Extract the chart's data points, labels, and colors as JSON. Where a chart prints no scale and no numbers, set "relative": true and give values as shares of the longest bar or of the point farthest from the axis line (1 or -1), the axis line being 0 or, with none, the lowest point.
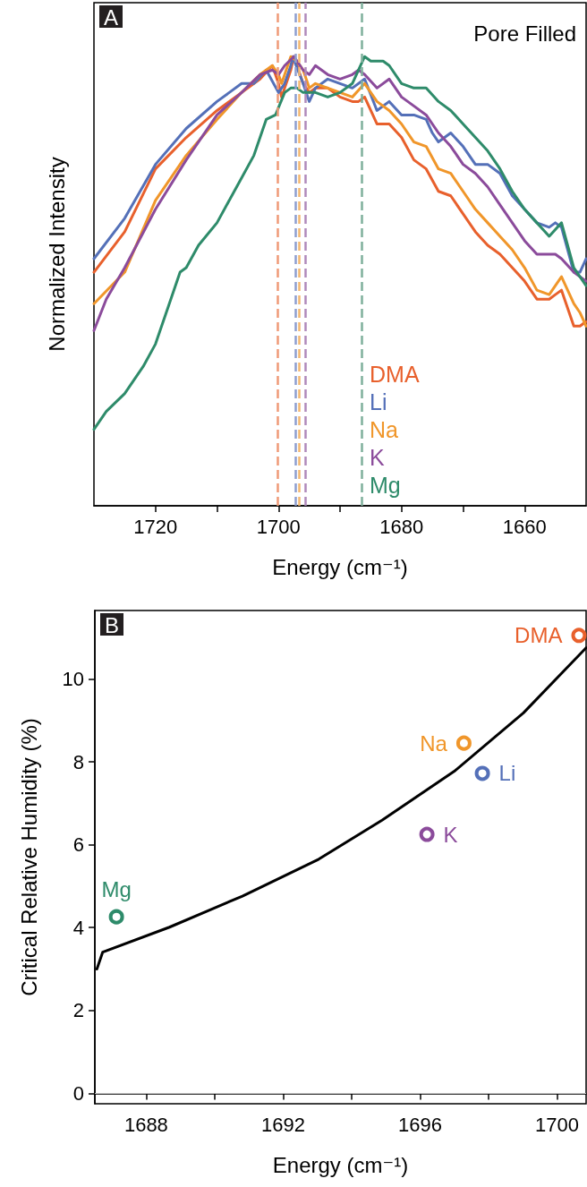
{
  "chart_data": [
    {
      "type": "line",
      "relative": true,
      "xlabel": "Energy (cm⁻¹)",
      "ylabel": "Normalized Intensity",
      "annotations": [
        "A",
        "Pore Filled"
      ],
      "xlim": [
        1730,
        1650
      ],
      "xticks": [
        1720,
        {
          "value": 1710,
          "label": null
        },
        1700,
        {
          "value": 1690,
          "label": null
        },
        1680,
        {
          "value": 1670,
          "label": null
        },
        1660
      ],
      "tick_labels": "x",
      "grid": false,
      "legend": "bottom",
      "series": [
        {
          "name": "DMA",
          "color": "#e8602c",
          "x": [
            1730,
            1725,
            1720,
            1715,
            1710,
            1706,
            1703,
            1701,
            1700,
            1699.5,
            1698,
            1697.5,
            1696,
            1695,
            1694,
            1692,
            1690,
            1688,
            1687,
            1686,
            1684,
            1682,
            1680,
            1678,
            1676,
            1674,
            1672,
            1670,
            1668,
            1666,
            1664,
            1662,
            1660,
            1658,
            1656,
            1655,
            1654,
            1652,
            1651,
            1650
          ],
          "values": [
            0.52,
            0.61,
            0.75,
            0.82,
            0.88,
            0.92,
            0.95,
            0.98,
            0.94,
            0.91,
            0.97,
            1.0,
            0.94,
            0.92,
            0.93,
            0.93,
            0.91,
            0.9,
            0.9,
            0.91,
            0.85,
            0.85,
            0.82,
            0.77,
            0.75,
            0.7,
            0.69,
            0.65,
            0.61,
            0.58,
            0.56,
            0.53,
            0.5,
            0.46,
            0.46,
            0.47,
            0.48,
            0.4,
            0.4,
            0.41
          ]
        },
        {
          "name": "Li",
          "color": "#5470b8",
          "x": [
            1730,
            1725,
            1720,
            1715,
            1710,
            1706,
            1704,
            1702,
            1700,
            1699,
            1698,
            1697.7,
            1696,
            1695,
            1694,
            1692,
            1690,
            1688,
            1686,
            1684,
            1682,
            1680,
            1678,
            1676,
            1675,
            1674,
            1672,
            1670,
            1668,
            1666,
            1664,
            1662,
            1660,
            1658,
            1656,
            1655,
            1654,
            1652,
            1651,
            1650
          ],
          "values": [
            0.55,
            0.64,
            0.76,
            0.84,
            0.9,
            0.94,
            0.94,
            0.97,
            0.92,
            0.94,
            0.98,
            1.0,
            0.94,
            0.9,
            0.93,
            0.95,
            0.94,
            0.93,
            0.95,
            0.88,
            0.9,
            0.87,
            0.87,
            0.86,
            0.83,
            0.81,
            0.83,
            0.8,
            0.76,
            0.76,
            0.74,
            0.69,
            0.66,
            0.63,
            0.62,
            0.63,
            0.62,
            0.52,
            0.52,
            0.55
          ]
        },
        {
          "name": "Na",
          "color": "#f0962a",
          "x": [
            1730,
            1725,
            1720,
            1715,
            1710,
            1706,
            1703,
            1701,
            1700,
            1699.5,
            1698,
            1697,
            1696,
            1695,
            1694,
            1692,
            1690,
            1688,
            1686,
            1684,
            1682,
            1680,
            1678,
            1676,
            1674,
            1672,
            1670,
            1668,
            1666,
            1664,
            1662,
            1660,
            1658,
            1656,
            1655,
            1654,
            1652,
            1651,
            1650
          ],
          "values": [
            0.45,
            0.52,
            0.68,
            0.78,
            0.86,
            0.92,
            0.96,
            0.98,
            0.96,
            0.94,
            1.0,
            0.99,
            0.97,
            0.93,
            0.94,
            0.93,
            0.92,
            0.91,
            0.94,
            0.9,
            0.88,
            0.85,
            0.81,
            0.8,
            0.75,
            0.74,
            0.7,
            0.66,
            0.63,
            0.6,
            0.57,
            0.53,
            0.48,
            0.47,
            0.49,
            0.51,
            0.45,
            0.43,
            0.4
          ]
        },
        {
          "name": "K",
          "color": "#8b4b9b",
          "x": [
            1730,
            1728,
            1725,
            1720,
            1715,
            1710,
            1706,
            1703,
            1701,
            1700,
            1699,
            1697.5,
            1696,
            1695,
            1694,
            1692,
            1690,
            1688,
            1687,
            1686,
            1684,
            1682,
            1680,
            1678,
            1676,
            1674,
            1672,
            1670,
            1668,
            1666,
            1664,
            1662,
            1660,
            1658,
            1656,
            1655,
            1654,
            1652,
            1650
          ],
          "values": [
            0.39,
            0.46,
            0.53,
            0.66,
            0.77,
            0.87,
            0.92,
            0.96,
            0.97,
            0.96,
            0.98,
            1.0,
            0.97,
            0.96,
            0.98,
            0.96,
            0.95,
            0.96,
            0.97,
            0.96,
            0.93,
            0.95,
            0.91,
            0.89,
            0.87,
            0.83,
            0.8,
            0.76,
            0.74,
            0.71,
            0.67,
            0.63,
            0.59,
            0.56,
            0.56,
            0.56,
            0.55,
            0.52,
            0.5
          ]
        },
        {
          "name": "Mg",
          "color": "#2e8b6a",
          "x": [
            1730,
            1728,
            1725,
            1722,
            1720,
            1718,
            1716,
            1715,
            1713,
            1710,
            1706,
            1704,
            1702,
            1700.5,
            1699,
            1698,
            1697,
            1696,
            1695,
            1694,
            1692,
            1690,
            1688,
            1686,
            1685,
            1684,
            1683,
            1682,
            1680,
            1678,
            1676,
            1674,
            1672,
            1670,
            1668,
            1666,
            1664,
            1662,
            1660,
            1658,
            1656,
            1654,
            1652,
            1650
          ],
          "values": [
            0.17,
            0.21,
            0.25,
            0.31,
            0.36,
            0.44,
            0.52,
            0.53,
            0.58,
            0.63,
            0.73,
            0.78,
            0.86,
            0.87,
            0.92,
            0.93,
            0.93,
            0.92,
            0.92,
            0.92,
            0.91,
            0.92,
            0.94,
            1.0,
            0.99,
            0.99,
            0.99,
            0.98,
            0.94,
            0.93,
            0.93,
            0.9,
            0.88,
            0.85,
            0.82,
            0.79,
            0.75,
            0.7,
            0.66,
            0.63,
            0.6,
            0.63,
            0.53,
            0.49
          ]
        }
      ],
      "ref_lines": [
        {
          "axis": "x",
          "value": 1700.1,
          "color": "#ef9a78",
          "line_style": "dashed"
        },
        {
          "axis": "x",
          "value": 1697.3,
          "color": "#8f9fd0",
          "line_style": "dashed"
        },
        {
          "axis": "x",
          "value": 1696.7,
          "color": "#f4b870",
          "line_style": "dashed"
        },
        {
          "axis": "x",
          "value": 1695.6,
          "color": "#b08abb",
          "line_style": "dashed"
        },
        {
          "axis": "x",
          "value": 1686.5,
          "color": "#7fb09c",
          "line_style": "dashed"
        }
      ]
    },
    {
      "type": "scatter",
      "xlabel": "Energy (cm⁻¹)",
      "ylabel": "Critical Relative Humidity (%)",
      "annotations": [
        "B"
      ],
      "xlim": [
        1686.5,
        1700.85
      ],
      "xticks": [
        1688,
        {
          "value": 1690,
          "label": null
        },
        1692,
        {
          "value": 1694,
          "label": null
        },
        1696,
        {
          "value": 1698,
          "label": null
        },
        1700
      ],
      "ylim": [
        -0.25,
        11.65
      ],
      "yticks": [
        0,
        2,
        4,
        6,
        8,
        10
      ],
      "grid": false,
      "legend": false,
      "marker": "circle",
      "series": [
        {
          "name": "DMA",
          "color": "#e8602c",
          "x": [
            1700.64
          ],
          "values": [
            11.05
          ]
        },
        {
          "name": "Li",
          "color": "#5470b8",
          "x": [
            1697.82
          ],
          "values": [
            7.72
          ]
        },
        {
          "name": "Na",
          "color": "#f0962a",
          "x": [
            1697.28
          ],
          "values": [
            8.45
          ]
        },
        {
          "name": "K",
          "color": "#8b4b9b",
          "x": [
            1696.2
          ],
          "values": [
            6.25
          ]
        },
        {
          "name": "Mg",
          "color": "#2e8b6a",
          "x": [
            1687.13
          ],
          "values": [
            4.26
          ]
        },
        {
          "type": "line",
          "marker": "none",
          "color": "#000000",
          "x": [
            1686.56,
            1686.73,
            1688.68,
            1690.81,
            1693.04,
            1694.89,
            1697.03,
            1699.02,
            1700.85
          ],
          "values": [
            3.0,
            3.41,
            4.01,
            4.76,
            5.65,
            6.59,
            7.79,
            9.18,
            10.75
          ]
        }
      ],
      "ref_lines": [
        {
          "axis": "y",
          "value": 0,
          "color": "#bbbbbb"
        }
      ]
    }
  ]
}
